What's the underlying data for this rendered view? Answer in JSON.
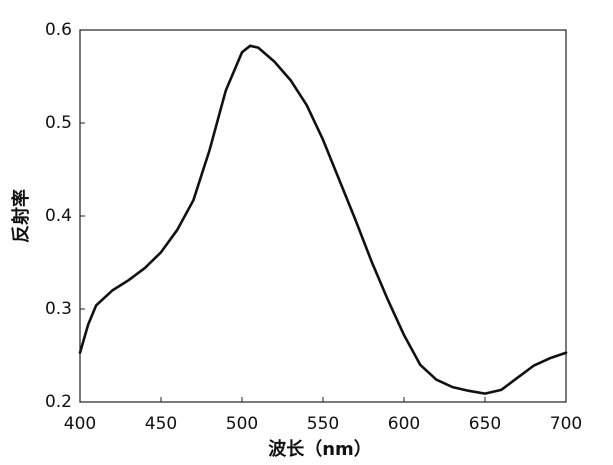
{
  "chart_data": {
    "type": "line",
    "x_label": "波长（nm）",
    "y_label": "反射率",
    "x": [
      400,
      405,
      410,
      420,
      430,
      440,
      450,
      460,
      470,
      480,
      490,
      500,
      505,
      510,
      520,
      530,
      540,
      550,
      560,
      570,
      580,
      590,
      600,
      610,
      620,
      630,
      640,
      650,
      660,
      670,
      680,
      690,
      700
    ],
    "series": [
      {
        "color": "#111111",
        "values": [
          0.253,
          0.283,
          0.304,
          0.32,
          0.331,
          0.344,
          0.361,
          0.385,
          0.417,
          0.471,
          0.535,
          0.576,
          0.583,
          0.581,
          0.566,
          0.546,
          0.519,
          0.482,
          0.439,
          0.396,
          0.351,
          0.31,
          0.272,
          0.24,
          0.224,
          0.216,
          0.212,
          0.209,
          0.213,
          0.226,
          0.239,
          0.247,
          0.253
        ]
      }
    ],
    "xlim": [
      400,
      700
    ],
    "xticks": [
      400,
      450,
      500,
      550,
      600,
      650,
      700
    ],
    "ylim": [
      0.2,
      0.6
    ],
    "yticks": [
      0.2,
      0.3,
      0.4,
      0.5,
      0.6
    ],
    "grid": false
  }
}
